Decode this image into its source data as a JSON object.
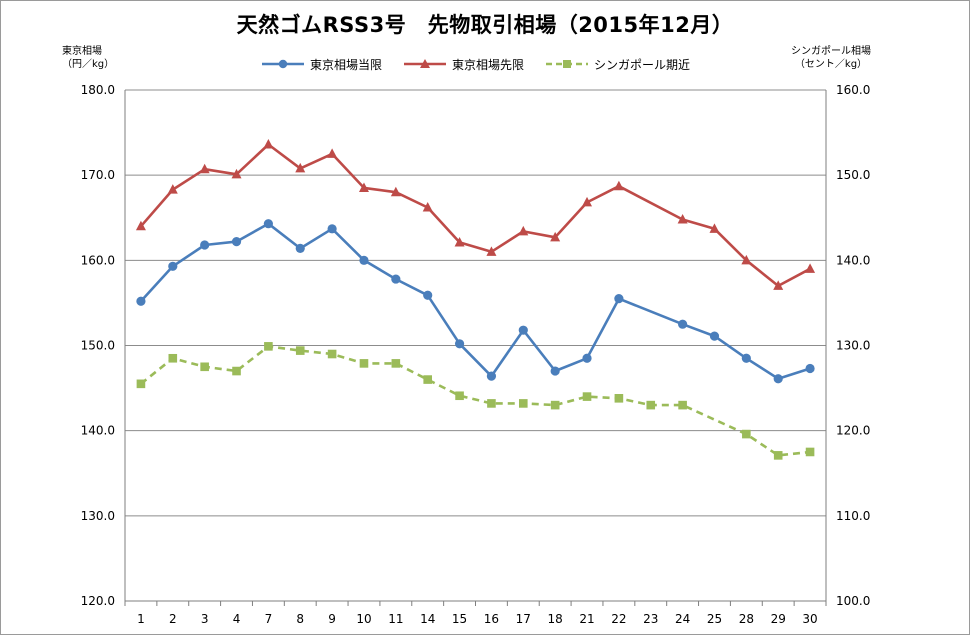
{
  "chart_data": {
    "type": "line",
    "title": "天然ゴムRSS3号　先物取引相場（2015年12月）",
    "left_axis_title": [
      "東京相場",
      "（円／kg）"
    ],
    "right_axis_title": [
      "シンガポール相場",
      "（セント／kg）"
    ],
    "categories": [
      "1",
      "2",
      "3",
      "4",
      "7",
      "8",
      "9",
      "10",
      "11",
      "14",
      "15",
      "16",
      "17",
      "18",
      "21",
      "22",
      "23",
      "24",
      "25",
      "28",
      "29",
      "30"
    ],
    "ylim_left": [
      120,
      180
    ],
    "ylim_right": [
      100,
      160
    ],
    "yticks_left": [
      "180.0",
      "170.0",
      "160.0",
      "150.0",
      "140.0",
      "130.0",
      "120.0"
    ],
    "yticks_right": [
      "160.0",
      "150.0",
      "140.0",
      "130.0",
      "120.0",
      "110.0",
      "100.0"
    ],
    "grid": true,
    "legend_position": "top",
    "series": [
      {
        "name": "東京相場当限",
        "axis": "left",
        "color": "#4a7ebb",
        "marker": "circle",
        "dash": false,
        "values": [
          155.2,
          159.3,
          161.8,
          162.2,
          164.3,
          161.4,
          163.7,
          160.0,
          157.8,
          155.9,
          150.2,
          146.4,
          151.8,
          147.0,
          148.5,
          155.5,
          null,
          152.5,
          151.1,
          148.5,
          146.1,
          147.3
        ]
      },
      {
        "name": "東京相場先限",
        "axis": "left",
        "color": "#be4b48",
        "marker": "triangle",
        "dash": false,
        "values": [
          164.0,
          168.3,
          170.7,
          170.1,
          173.6,
          170.8,
          172.5,
          168.5,
          168.0,
          166.2,
          162.1,
          161.0,
          163.4,
          162.7,
          166.8,
          168.7,
          null,
          164.8,
          163.7,
          160.0,
          157.0,
          159.0
        ]
      },
      {
        "name": "シンガポール期近",
        "axis": "right",
        "color": "#9bbb59",
        "marker": "square",
        "dash": true,
        "values": [
          125.5,
          128.5,
          127.5,
          127.0,
          129.9,
          129.4,
          129.0,
          127.9,
          127.9,
          126.0,
          124.1,
          123.2,
          123.2,
          123.0,
          124.0,
          123.8,
          123.0,
          123.0,
          null,
          119.6,
          117.1,
          117.5
        ]
      }
    ]
  }
}
